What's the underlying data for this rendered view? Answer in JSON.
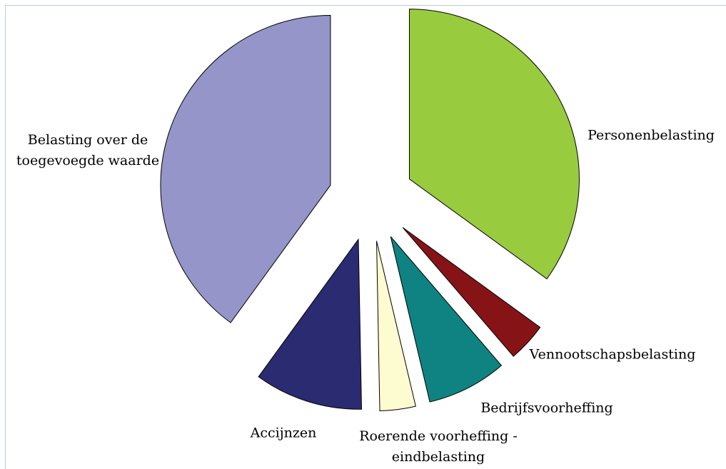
{
  "chart_data": {
    "type": "pie",
    "categories": [
      "Personenbelasting",
      "Vennootschapsbelasting",
      "Bedrijfsvoorheffing",
      "Roerende voorheffing - eindbelasting",
      "Accijnzen",
      "Belasting over de toegevoegde waarde"
    ],
    "values": [
      35,
      3.7,
      7.6,
      3.4,
      10.3,
      40
    ],
    "colors": [
      "#99cb3f",
      "#861417",
      "#0f8282",
      "#fdfbd0",
      "#2b2b72",
      "#9595c9"
    ]
  }
}
